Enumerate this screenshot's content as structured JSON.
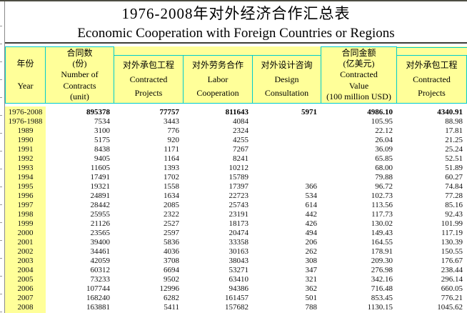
{
  "title": {
    "zh": "1976-2008年对外经济合作汇总表",
    "en": "Economic Cooperation with Foreign Countries or Regions"
  },
  "colors": {
    "header_bg": "#FFFF99",
    "grid_accent": "#00CCCC"
  },
  "table": {
    "columns": [
      {
        "id": "year",
        "lines": [
          "年份",
          "Year"
        ]
      },
      {
        "id": "number-of-contracts",
        "lines": [
          "合同数",
          "(份)",
          "Number of",
          "Contracts",
          "(unit)"
        ]
      },
      {
        "id": "contracted-projects",
        "lines": [
          "对外承包工程",
          "Contracted",
          "Projects"
        ]
      },
      {
        "id": "labor-cooperation",
        "lines": [
          "对外劳务合作",
          "Labor",
          "Cooperation"
        ]
      },
      {
        "id": "design-consultation",
        "lines": [
          "对外设计咨询",
          "Design",
          "Consultation"
        ]
      },
      {
        "id": "contracted-value",
        "lines": [
          "合同金额",
          "(亿美元)",
          "Contracted",
          "Value",
          "(100 million USD)"
        ]
      },
      {
        "id": "contracted-projects-value",
        "lines": [
          "对外承包工程",
          "Contracted",
          "Projects"
        ]
      }
    ],
    "rows": [
      {
        "year": "1976-2008",
        "is_total": true,
        "values": [
          "895378",
          "77757",
          "811643",
          "5971",
          "4986.10",
          "4340.91"
        ]
      },
      {
        "year": "1976-1988",
        "values": [
          "7534",
          "3443",
          "4084",
          "",
          "105.95",
          "88.98"
        ]
      },
      {
        "year": "1989",
        "values": [
          "3100",
          "776",
          "2324",
          "",
          "22.12",
          "17.81"
        ]
      },
      {
        "year": "1990",
        "values": [
          "5175",
          "920",
          "4255",
          "",
          "26.04",
          "21.25"
        ]
      },
      {
        "year": "1991",
        "values": [
          "8438",
          "1171",
          "7267",
          "",
          "36.09",
          "25.24"
        ]
      },
      {
        "year": "1992",
        "values": [
          "9405",
          "1164",
          "8241",
          "",
          "65.85",
          "52.51"
        ]
      },
      {
        "year": "1993",
        "values": [
          "11605",
          "1393",
          "10212",
          "",
          "68.00",
          "51.89"
        ]
      },
      {
        "year": "1994",
        "values": [
          "17491",
          "1702",
          "15789",
          "",
          "79.88",
          "60.27"
        ]
      },
      {
        "year": "1995",
        "values": [
          "19321",
          "1558",
          "17397",
          "366",
          "96.72",
          "74.84"
        ]
      },
      {
        "year": "1996",
        "values": [
          "24891",
          "1634",
          "22723",
          "534",
          "102.73",
          "77.28"
        ]
      },
      {
        "year": "1997",
        "values": [
          "28442",
          "2085",
          "25743",
          "614",
          "113.56",
          "85.16"
        ]
      },
      {
        "year": "1998",
        "values": [
          "25955",
          "2322",
          "23191",
          "442",
          "117.73",
          "92.43"
        ]
      },
      {
        "year": "1999",
        "values": [
          "21126",
          "2527",
          "18173",
          "426",
          "130.02",
          "101.99"
        ]
      },
      {
        "year": "2000",
        "values": [
          "23565",
          "2597",
          "20474",
          "494",
          "149.43",
          "117.19"
        ]
      },
      {
        "year": "2001",
        "values": [
          "39400",
          "5836",
          "33358",
          "206",
          "164.55",
          "130.39"
        ]
      },
      {
        "year": "2002",
        "values": [
          "34461",
          "4036",
          "30163",
          "262",
          "178.91",
          "150.55"
        ]
      },
      {
        "year": "2003",
        "values": [
          "42059",
          "3708",
          "38043",
          "308",
          "209.30",
          "176.67"
        ]
      },
      {
        "year": "2004",
        "values": [
          "60312",
          "6694",
          "53271",
          "347",
          "276.98",
          "238.44"
        ]
      },
      {
        "year": "2005",
        "values": [
          "73233",
          "9502",
          "63410",
          "321",
          "342.16",
          "296.14"
        ]
      },
      {
        "year": "2006",
        "values": [
          "107744",
          "12996",
          "94386",
          "362",
          "716.48",
          "660.05"
        ]
      },
      {
        "year": "2007",
        "values": [
          "168240",
          "6282",
          "161457",
          "501",
          "853.45",
          "776.21"
        ]
      },
      {
        "year": "2008",
        "values": [
          "163881",
          "5411",
          "157682",
          "788",
          "1130.15",
          "1045.62"
        ]
      }
    ]
  }
}
